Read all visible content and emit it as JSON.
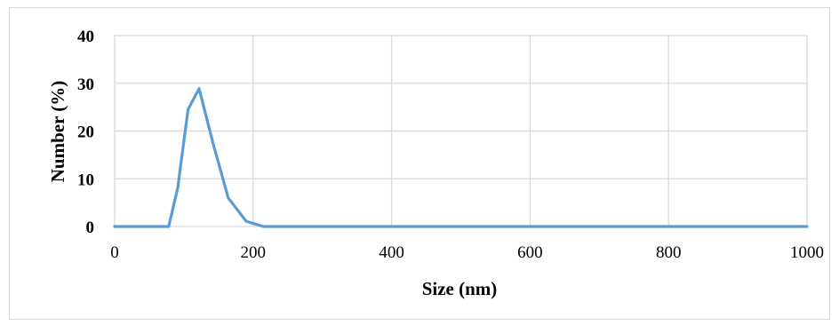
{
  "chart_data": {
    "type": "line",
    "xlabel": "Size (nm)",
    "ylabel": "Number (%)",
    "xlim": [
      0,
      1000
    ],
    "ylim": [
      0,
      40
    ],
    "x_ticks": [
      "0",
      "200",
      "400",
      "600",
      "800",
      "1000"
    ],
    "y_ticks": [
      "0",
      "10",
      "20",
      "30",
      "40"
    ],
    "grid": true,
    "legend": "none",
    "series": [
      {
        "color": "#5b9bd5",
        "points": [
          [
            0,
            0
          ],
          [
            50,
            0
          ],
          [
            78,
            0
          ],
          [
            91,
            8
          ],
          [
            106,
            24.5
          ],
          [
            122,
            28.9
          ],
          [
            142,
            17.5
          ],
          [
            164,
            6
          ],
          [
            190,
            1.1
          ],
          [
            215,
            0
          ],
          [
            300,
            0
          ],
          [
            400,
            0
          ],
          [
            600,
            0
          ],
          [
            800,
            0
          ],
          [
            1000,
            0
          ]
        ]
      }
    ]
  }
}
